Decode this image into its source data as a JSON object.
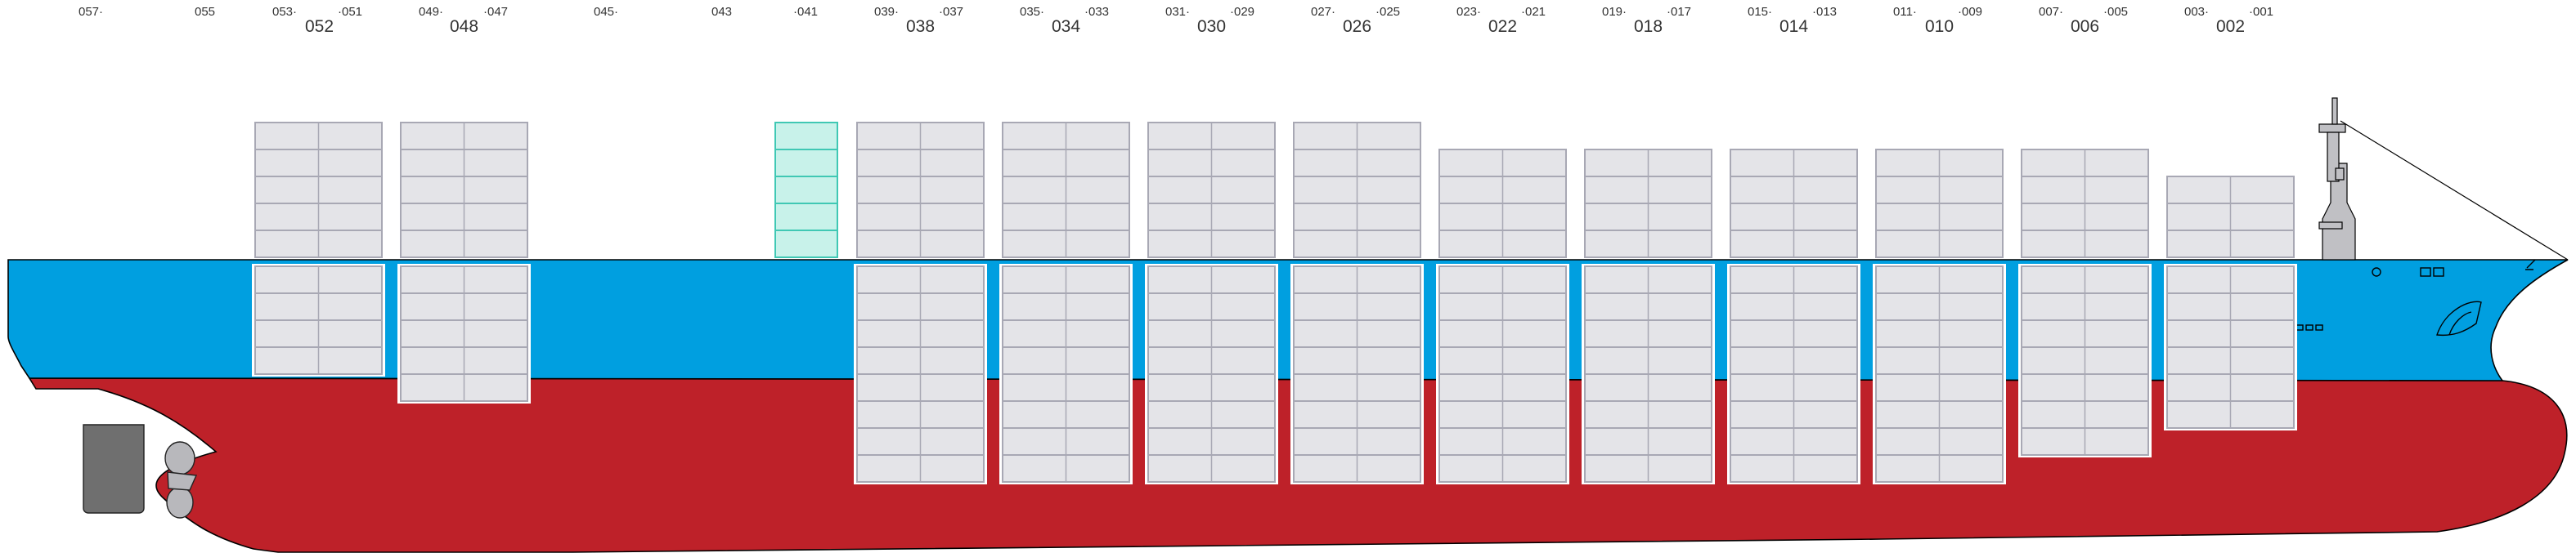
{
  "bay_labels_top": [
    {
      "id": "small_057",
      "text": "057·"
    },
    {
      "id": "small_055",
      "text": "055"
    },
    {
      "id": "small_053",
      "text": "053·"
    },
    {
      "id": "small_051",
      "text": "·051"
    },
    {
      "id": "small_049",
      "text": "049·"
    },
    {
      "id": "small_047",
      "text": "·047"
    },
    {
      "id": "small_045",
      "text": "045·"
    },
    {
      "id": "small_043",
      "text": "043"
    },
    {
      "id": "small_041",
      "text": "·041"
    },
    {
      "id": "small_039",
      "text": "039·"
    },
    {
      "id": "small_037",
      "text": "·037"
    },
    {
      "id": "small_035",
      "text": "035·"
    },
    {
      "id": "small_033",
      "text": "·033"
    },
    {
      "id": "small_031",
      "text": "031·"
    },
    {
      "id": "small_029",
      "text": "·029"
    },
    {
      "id": "small_027",
      "text": "027·"
    },
    {
      "id": "small_025",
      "text": "·025"
    },
    {
      "id": "small_023",
      "text": "023·"
    },
    {
      "id": "small_021",
      "text": "·021"
    },
    {
      "id": "small_019",
      "text": "019·"
    },
    {
      "id": "small_017",
      "text": "·017"
    },
    {
      "id": "small_015",
      "text": "015·"
    },
    {
      "id": "small_013",
      "text": "·013"
    },
    {
      "id": "small_011",
      "text": "011·"
    },
    {
      "id": "small_009",
      "text": "·009"
    },
    {
      "id": "small_007",
      "text": "007·"
    },
    {
      "id": "small_005",
      "text": "·005"
    },
    {
      "id": "small_003",
      "text": "003·"
    },
    {
      "id": "small_001",
      "text": "·001"
    }
  ],
  "bay_labels_main": [
    {
      "id": "bay_052",
      "text": "052"
    },
    {
      "id": "bay_048",
      "text": "048"
    },
    {
      "id": "bay_038",
      "text": "038"
    },
    {
      "id": "bay_034",
      "text": "034"
    },
    {
      "id": "bay_030",
      "text": "030"
    },
    {
      "id": "bay_026",
      "text": "026"
    },
    {
      "id": "bay_022",
      "text": "022"
    },
    {
      "id": "bay_018",
      "text": "018"
    },
    {
      "id": "bay_014",
      "text": "014"
    },
    {
      "id": "bay_010",
      "text": "010"
    },
    {
      "id": "bay_006",
      "text": "006"
    },
    {
      "id": "bay_002",
      "text": "002"
    }
  ],
  "deck_bays": [
    {
      "bay": "052",
      "tiers": 5
    },
    {
      "bay": "048",
      "tiers": 5
    },
    {
      "bay": "041",
      "tiers": 5,
      "highlighted": true
    },
    {
      "bay": "038",
      "tiers": 5
    },
    {
      "bay": "034",
      "tiers": 5
    },
    {
      "bay": "030",
      "tiers": 5
    },
    {
      "bay": "026",
      "tiers": 5
    },
    {
      "bay": "022",
      "tiers": 4
    },
    {
      "bay": "018",
      "tiers": 4
    },
    {
      "bay": "014",
      "tiers": 4
    },
    {
      "bay": "010",
      "tiers": 4
    },
    {
      "bay": "006",
      "tiers": 4
    },
    {
      "bay": "002",
      "tiers": 3
    }
  ],
  "hold_bays": [
    {
      "bay": "052",
      "tiers": 4
    },
    {
      "bay": "048",
      "tiers": 5
    },
    {
      "bay": "038",
      "tiers": 8
    },
    {
      "bay": "034",
      "tiers": 8
    },
    {
      "bay": "030",
      "tiers": 8
    },
    {
      "bay": "026",
      "tiers": 8
    },
    {
      "bay": "022",
      "tiers": 8
    },
    {
      "bay": "018",
      "tiers": 8
    },
    {
      "bay": "014",
      "tiers": 8
    },
    {
      "bay": "010",
      "tiers": 8
    },
    {
      "bay": "006",
      "tiers": 7
    },
    {
      "bay": "002",
      "tiers": 6
    }
  ],
  "colors": {
    "hull_upper": "#009fe0",
    "hull_lower": "#be2129",
    "container_fill": "#e4e4e8",
    "container_line": "#a8a8b4",
    "highlight_fill": "#c8f2ea",
    "highlight_line": "#40c8b4",
    "superstructure": "#c0c0c4",
    "rudder": "#6f6f6f",
    "propeller": "#b8b8bc"
  }
}
